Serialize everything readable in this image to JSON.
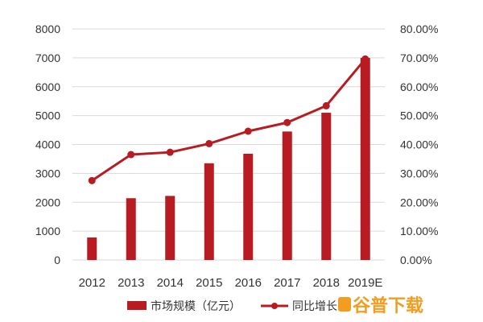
{
  "chart_data": {
    "type": "bar+line",
    "categories": [
      "2012",
      "2013",
      "2014",
      "2015",
      "2016",
      "2017",
      "2018",
      "2019E"
    ],
    "series": [
      {
        "name": "市场规模（亿元）",
        "type": "bar",
        "axis": "left",
        "values": [
          780,
          2140,
          2220,
          3350,
          3680,
          4450,
          5100,
          7000
        ]
      },
      {
        "name": "同比增长",
        "type": "line",
        "axis": "right",
        "values": [
          27.5,
          36.5,
          37.3,
          40.3,
          44.6,
          47.6,
          53.4,
          69.6
        ]
      }
    ],
    "y_left": {
      "ylim": [
        0,
        8000
      ],
      "ticks": [
        "0",
        "1000",
        "2000",
        "3000",
        "4000",
        "5000",
        "6000",
        "7000",
        "8000"
      ]
    },
    "y_right": {
      "ylim": [
        0,
        80
      ],
      "ticks": [
        "0.00%",
        "10.00%",
        "20.00%",
        "30.00%",
        "40.00%",
        "50.00%",
        "60.00%",
        "70.00%",
        "80.00%"
      ]
    },
    "grid": true,
    "legend": "bottom",
    "colors": {
      "bar": "#b81c22",
      "line": "#b81c22",
      "grid": "#d9d9d9",
      "watermark": "#f29d1f"
    }
  },
  "watermark": {
    "text": "谷普下载"
  }
}
